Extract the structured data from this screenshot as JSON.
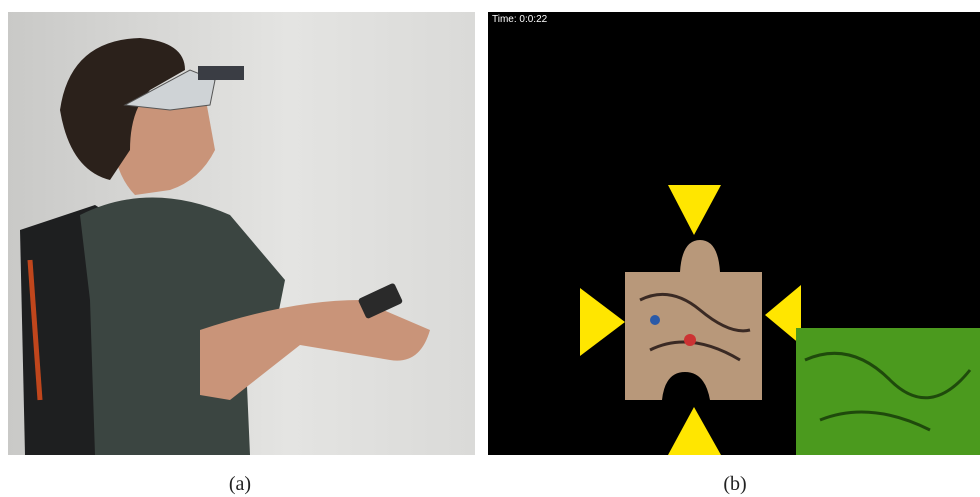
{
  "panels": [
    {
      "caption": "(a)"
    },
    {
      "caption": "(b)",
      "timer": "Time: 0:0:22"
    }
  ]
}
